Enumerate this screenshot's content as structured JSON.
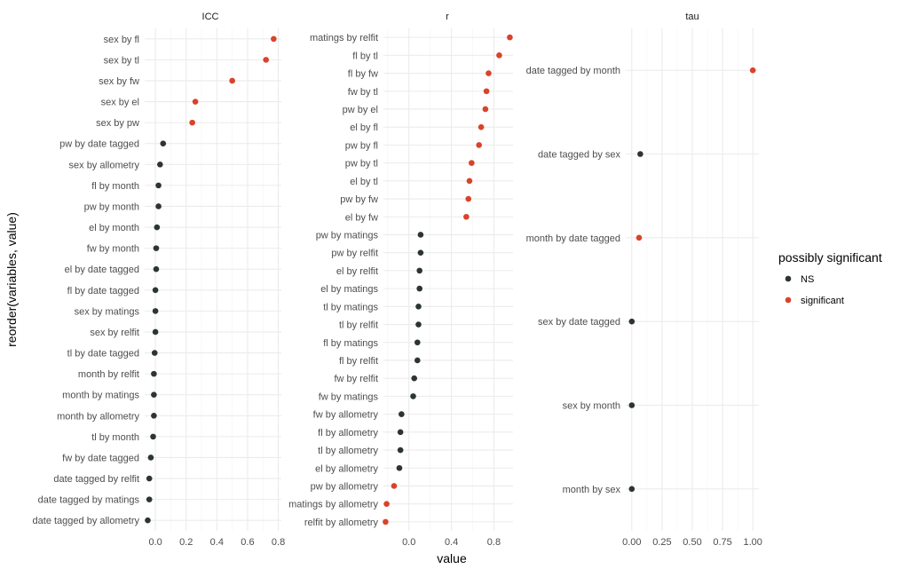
{
  "chart_data": {
    "type": "scatter",
    "subtype": "faceted dot plot",
    "xlabel": "value",
    "ylabel": "reorder(variables, value)",
    "grid": true,
    "legend": {
      "title": "possibly significant",
      "placement": "right",
      "entries": [
        {
          "label": "NS",
          "color": "#2d3436"
        },
        {
          "label": "significant",
          "color": "#d9432a"
        }
      ]
    },
    "colors": {
      "NS": "#2d3436",
      "significant": "#d9432a"
    },
    "facets": [
      {
        "title": "ICC",
        "xlim": [
          -0.07,
          0.82
        ],
        "xticks": [
          0.0,
          0.2,
          0.4,
          0.6,
          0.8
        ],
        "xtick_labels": [
          "0.0",
          "0.2",
          "0.4",
          "0.6",
          "0.8"
        ],
        "points": [
          {
            "label": "sex by fl",
            "value": 0.77,
            "group": "significant"
          },
          {
            "label": "sex by tl",
            "value": 0.72,
            "group": "significant"
          },
          {
            "label": "sex by fw",
            "value": 0.5,
            "group": "significant"
          },
          {
            "label": "sex by el",
            "value": 0.26,
            "group": "significant"
          },
          {
            "label": "sex by pw",
            "value": 0.24,
            "group": "significant"
          },
          {
            "label": "pw by date tagged",
            "value": 0.05,
            "group": "NS"
          },
          {
            "label": "sex by allometry",
            "value": 0.03,
            "group": "NS"
          },
          {
            "label": "fl by month",
            "value": 0.02,
            "group": "NS"
          },
          {
            "label": "pw by month",
            "value": 0.02,
            "group": "NS"
          },
          {
            "label": "el by month",
            "value": 0.01,
            "group": "NS"
          },
          {
            "label": "fw by month",
            "value": 0.005,
            "group": "NS"
          },
          {
            "label": "el by date tagged",
            "value": 0.005,
            "group": "NS"
          },
          {
            "label": "fl by date tagged",
            "value": 0.0,
            "group": "NS"
          },
          {
            "label": "sex by matings",
            "value": 0.0,
            "group": "NS"
          },
          {
            "label": "sex by relfit",
            "value": 0.0,
            "group": "NS"
          },
          {
            "label": "tl by date tagged",
            "value": -0.005,
            "group": "NS"
          },
          {
            "label": "month by relfit",
            "value": -0.01,
            "group": "NS"
          },
          {
            "label": "month by matings",
            "value": -0.01,
            "group": "NS"
          },
          {
            "label": "month by allometry",
            "value": -0.01,
            "group": "NS"
          },
          {
            "label": "tl by month",
            "value": -0.015,
            "group": "NS"
          },
          {
            "label": "fw by date tagged",
            "value": -0.03,
            "group": "NS"
          },
          {
            "label": "date tagged by relfit",
            "value": -0.04,
            "group": "NS"
          },
          {
            "label": "date tagged by matings",
            "value": -0.04,
            "group": "NS"
          },
          {
            "label": "date tagged by allometry",
            "value": -0.05,
            "group": "NS"
          }
        ]
      },
      {
        "title": "r",
        "xlim": [
          -0.24,
          0.98
        ],
        "xticks": [
          0.0,
          0.4,
          0.8
        ],
        "xtick_labels": [
          "0.0",
          "0.4",
          "0.8"
        ],
        "points": [
          {
            "label": "matings by relfit",
            "value": 0.95,
            "group": "significant"
          },
          {
            "label": "fl by tl",
            "value": 0.85,
            "group": "significant"
          },
          {
            "label": "fl by fw",
            "value": 0.75,
            "group": "significant"
          },
          {
            "label": "fw by tl",
            "value": 0.73,
            "group": "significant"
          },
          {
            "label": "pw by el",
            "value": 0.72,
            "group": "significant"
          },
          {
            "label": "el by fl",
            "value": 0.68,
            "group": "significant"
          },
          {
            "label": "pw by fl",
            "value": 0.66,
            "group": "significant"
          },
          {
            "label": "pw by tl",
            "value": 0.59,
            "group": "significant"
          },
          {
            "label": "el by tl",
            "value": 0.57,
            "group": "significant"
          },
          {
            "label": "pw by fw",
            "value": 0.56,
            "group": "significant"
          },
          {
            "label": "el by fw",
            "value": 0.54,
            "group": "significant"
          },
          {
            "label": "pw by matings",
            "value": 0.11,
            "group": "NS"
          },
          {
            "label": "pw by relfit",
            "value": 0.11,
            "group": "NS"
          },
          {
            "label": "el by relfit",
            "value": 0.1,
            "group": "NS"
          },
          {
            "label": "el by matings",
            "value": 0.1,
            "group": "NS"
          },
          {
            "label": "tl by matings",
            "value": 0.09,
            "group": "NS"
          },
          {
            "label": "tl by relfit",
            "value": 0.09,
            "group": "NS"
          },
          {
            "label": "fl by matings",
            "value": 0.08,
            "group": "NS"
          },
          {
            "label": "fl by relfit",
            "value": 0.08,
            "group": "NS"
          },
          {
            "label": "fw by relfit",
            "value": 0.05,
            "group": "NS"
          },
          {
            "label": "fw by matings",
            "value": 0.04,
            "group": "NS"
          },
          {
            "label": "fw by allometry",
            "value": -0.07,
            "group": "NS"
          },
          {
            "label": "fl by allometry",
            "value": -0.08,
            "group": "NS"
          },
          {
            "label": "tl by allometry",
            "value": -0.08,
            "group": "NS"
          },
          {
            "label": "el by allometry",
            "value": -0.09,
            "group": "NS"
          },
          {
            "label": "pw by allometry",
            "value": -0.14,
            "group": "significant"
          },
          {
            "label": "matings by allometry",
            "value": -0.21,
            "group": "significant"
          },
          {
            "label": "relfit by allometry",
            "value": -0.22,
            "group": "significant"
          }
        ]
      },
      {
        "title": "tau",
        "xlim": [
          -0.05,
          1.05
        ],
        "xticks": [
          0.0,
          0.25,
          0.5,
          0.75,
          1.0
        ],
        "xtick_labels": [
          "0.00",
          "0.25",
          "0.50",
          "0.75",
          "1.00"
        ],
        "points": [
          {
            "label": "date tagged by month",
            "value": 1.0,
            "group": "significant"
          },
          {
            "label": "date tagged by sex",
            "value": 0.07,
            "group": "NS"
          },
          {
            "label": "month by date tagged",
            "value": 0.06,
            "group": "significant"
          },
          {
            "label": "sex by date tagged",
            "value": 0.0,
            "group": "NS"
          },
          {
            "label": "sex by month",
            "value": 0.0,
            "group": "NS"
          },
          {
            "label": "month by sex",
            "value": 0.0,
            "group": "NS"
          }
        ]
      }
    ]
  }
}
